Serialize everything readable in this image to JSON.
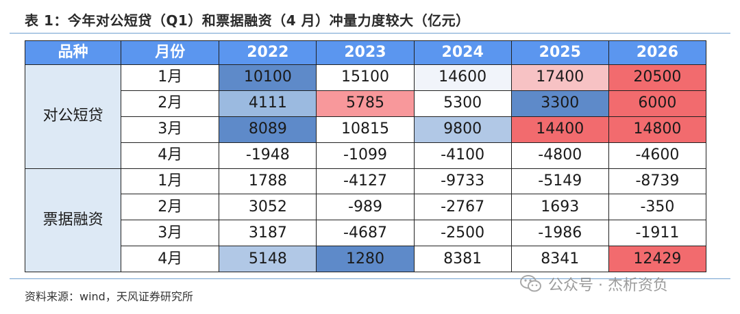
{
  "title": "表 1：今年对公短贷（Q1）和票据融资（4 月）冲量力度较大（亿元）",
  "header": {
    "category": "品种",
    "month": "月份",
    "years": [
      "2022",
      "2023",
      "2024",
      "2025",
      "2026"
    ]
  },
  "groups": [
    {
      "name": "对公短贷",
      "rows": [
        {
          "month": "1月",
          "values": [
            "10100",
            "15100",
            "14600",
            "17400",
            "20500"
          ],
          "colors": [
            "#5e8ac9",
            "#ffffff",
            "#f1f4fa",
            "#f7c2c4",
            "#f26b6e"
          ]
        },
        {
          "month": "2月",
          "values": [
            "4111",
            "5785",
            "5300",
            "3300",
            "6000"
          ],
          "colors": [
            "#9bbae0",
            "#f8989b",
            "#ffffff",
            "#5e8ac9",
            "#f26b6e"
          ]
        },
        {
          "month": "3月",
          "values": [
            "8089",
            "10815",
            "9800",
            "14400",
            "14800"
          ],
          "colors": [
            "#5e8ac9",
            "#ffffff",
            "#b1c8e6",
            "#f26b6e",
            "#f26b6e"
          ]
        },
        {
          "month": "4月",
          "values": [
            "-1948",
            "-1099",
            "-4100",
            "-4800",
            "-4600"
          ],
          "colors": [
            "#ffffff",
            "#ffffff",
            "#ffffff",
            "#ffffff",
            "#ffffff"
          ]
        }
      ]
    },
    {
      "name": "票据融资",
      "rows": [
        {
          "month": "1月",
          "values": [
            "1788",
            "-4127",
            "-9733",
            "-5149",
            "-8739"
          ],
          "colors": [
            "#ffffff",
            "#ffffff",
            "#ffffff",
            "#ffffff",
            "#ffffff"
          ]
        },
        {
          "month": "2月",
          "values": [
            "3052",
            "-989",
            "-2767",
            "1693",
            "-350"
          ],
          "colors": [
            "#ffffff",
            "#ffffff",
            "#ffffff",
            "#ffffff",
            "#ffffff"
          ]
        },
        {
          "month": "3月",
          "values": [
            "3187",
            "-4687",
            "-2500",
            "-1986",
            "-1911"
          ],
          "colors": [
            "#ffffff",
            "#ffffff",
            "#ffffff",
            "#ffffff",
            "#ffffff"
          ]
        },
        {
          "month": "4月",
          "values": [
            "5148",
            "1280",
            "8381",
            "8341",
            "12429"
          ],
          "colors": [
            "#b1c8e6",
            "#5e8ac9",
            "#ffffff",
            "#ffffff",
            "#f26b6e"
          ]
        }
      ]
    }
  ],
  "source": "资料来源：wind，天风证券研究所",
  "watermark": "公众号 · 杰析资负"
}
